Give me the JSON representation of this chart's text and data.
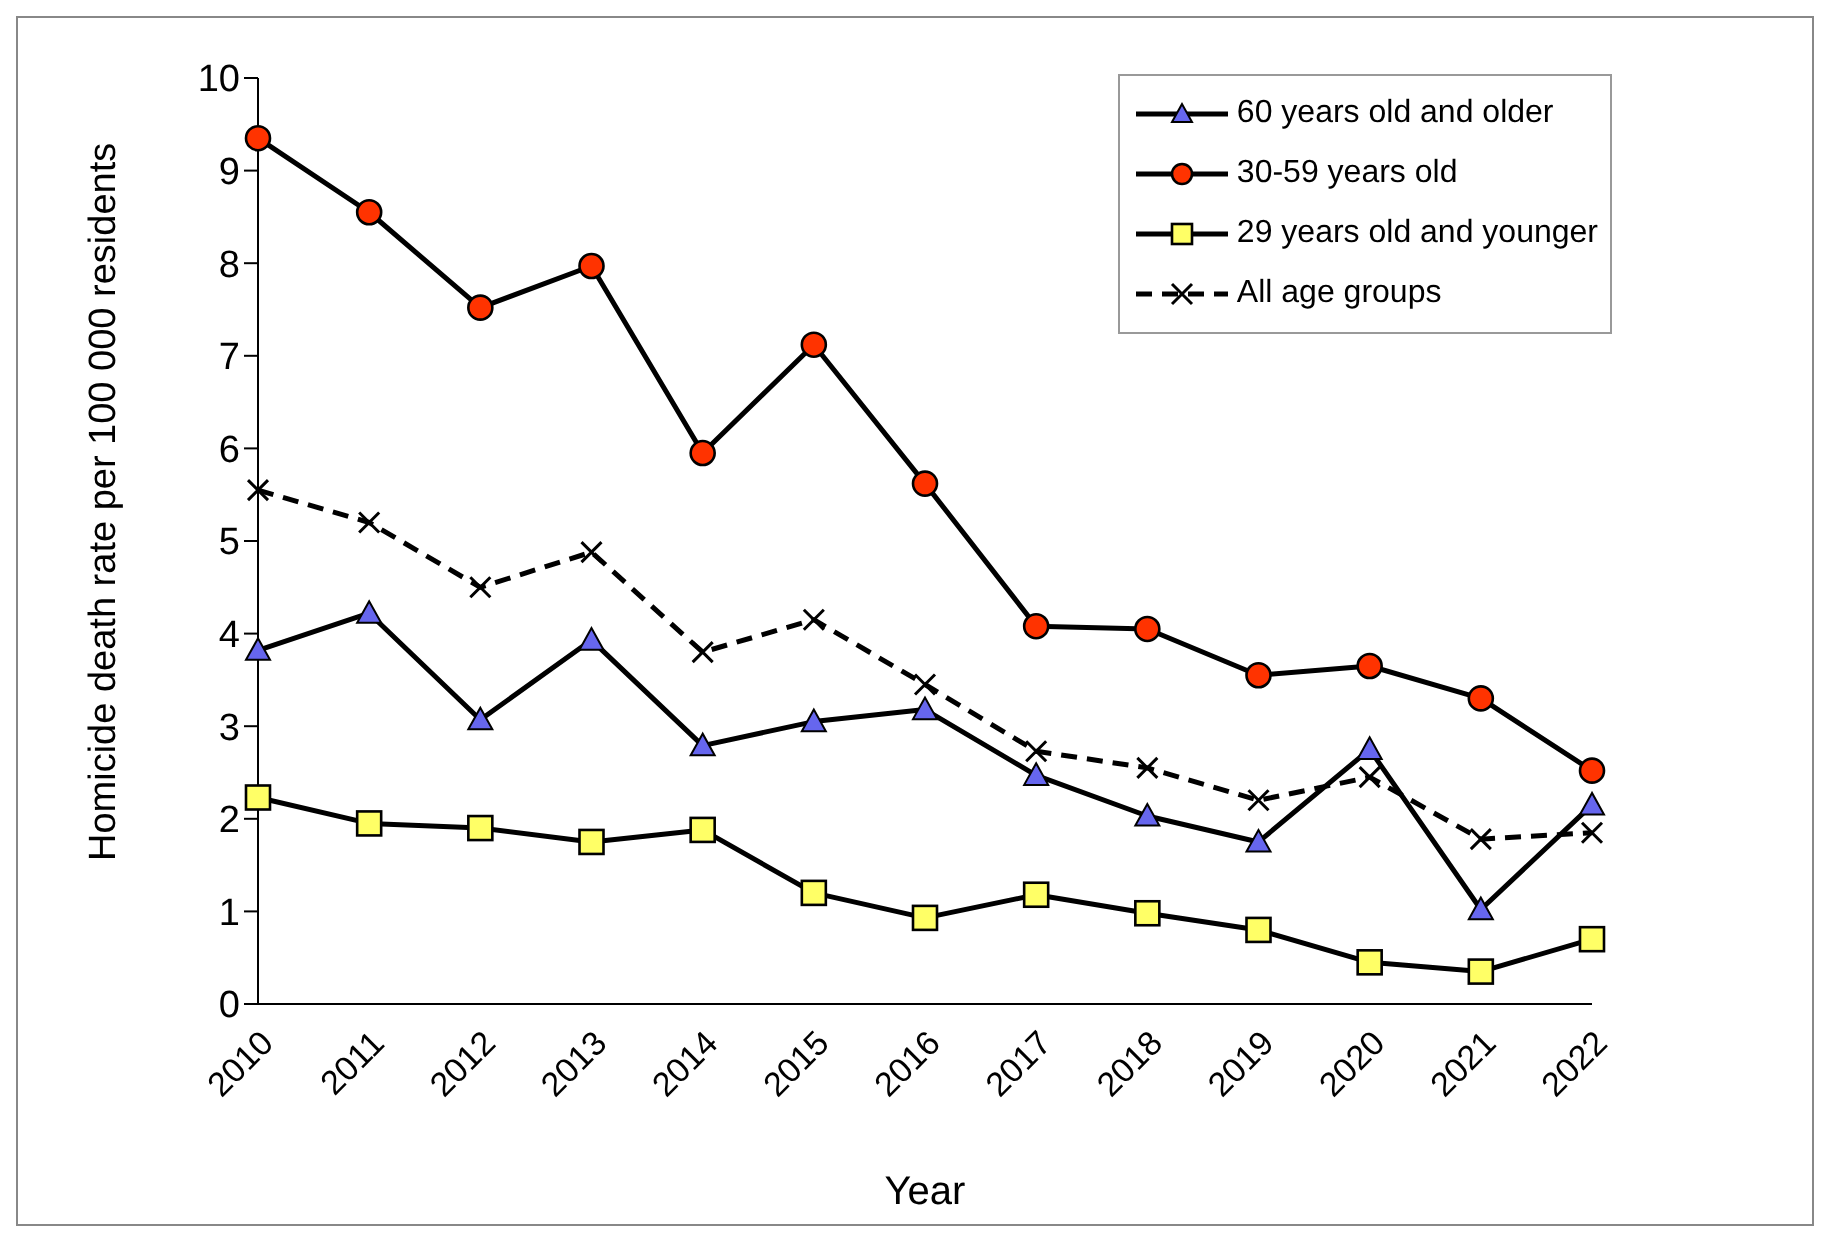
{
  "chart_data": {
    "type": "line",
    "xlabel": "Year",
    "ylabel": "Homicide death rate per 100 000 residents",
    "categories": [
      "2010",
      "2011",
      "2012",
      "2013",
      "2014",
      "2015",
      "2016",
      "2017",
      "2018",
      "2019",
      "2020",
      "2021",
      "2022"
    ],
    "series": [
      {
        "name": "60 years old and older",
        "color": "#6666ee",
        "marker": "triangle",
        "line_style": "solid",
        "values": [
          3.82,
          4.22,
          3.07,
          3.93,
          2.79,
          3.05,
          3.18,
          2.47,
          2.03,
          1.75,
          2.75,
          1.02,
          2.15
        ]
      },
      {
        "name": "30-59 years old",
        "color": "#ff3300",
        "marker": "circle",
        "line_style": "solid",
        "values": [
          9.35,
          8.55,
          7.52,
          7.97,
          5.95,
          7.12,
          5.62,
          4.08,
          4.05,
          3.55,
          3.65,
          3.3,
          2.52
        ]
      },
      {
        "name": "29 years old and younger",
        "color": "#ffff66",
        "marker": "square",
        "line_style": "solid",
        "values": [
          2.23,
          1.95,
          1.9,
          1.75,
          1.88,
          1.2,
          0.93,
          1.18,
          0.98,
          0.8,
          0.45,
          0.35,
          0.7
        ]
      },
      {
        "name": "All age groups",
        "color": "#000000",
        "marker": "cross",
        "line_style": "dashed",
        "values": [
          5.55,
          5.2,
          4.5,
          4.88,
          3.8,
          4.15,
          3.45,
          2.73,
          2.55,
          2.2,
          2.45,
          1.78,
          1.85
        ]
      }
    ],
    "ylim": [
      0,
      10
    ],
    "yticks": [
      0,
      1,
      2,
      3,
      4,
      5,
      6,
      7,
      8,
      9,
      10
    ],
    "grid": false,
    "legend": "top right"
  }
}
